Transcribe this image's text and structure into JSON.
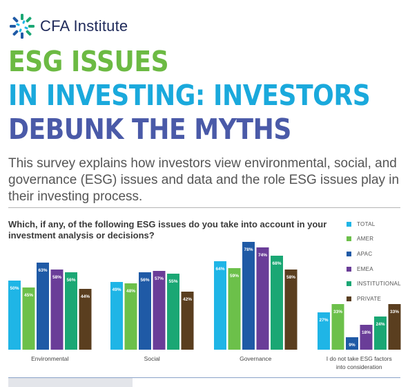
{
  "brand": {
    "name": "CFA Institute",
    "logo": "cfa-institute-logo"
  },
  "headline": {
    "line1": "ESG ISSUES",
    "line2": "IN INVESTING: INVESTORS",
    "line3": "DEBUNK THE MYTHS",
    "colors": [
      "#6cba43",
      "#1aa9dc",
      "#4a5aa8"
    ]
  },
  "intro": "This survey explains how investors view environmental, social, and governance (ESG) issues and data and the role ESG issues play in their investing process.",
  "chart_data": {
    "type": "bar",
    "title": "Which, if any, of the following ESG issues do you take into account in your investment analysis or decisions?",
    "categories": [
      "Environmental",
      "Social",
      "Governance",
      "I do not take ESG factors into consideration"
    ],
    "ylim": [
      0,
      80
    ],
    "grid": false,
    "legend_position": "top-right",
    "series": [
      {
        "name": "TOTAL",
        "color": "#1fb5e6",
        "values": [
          50,
          49,
          64,
          27
        ]
      },
      {
        "name": "AMER",
        "color": "#6cc04a",
        "values": [
          45,
          48,
          59,
          33
        ]
      },
      {
        "name": "APAC",
        "color": "#1f5aa6",
        "values": [
          63,
          56,
          78,
          9
        ]
      },
      {
        "name": "EMEA",
        "color": "#6a3d98",
        "values": [
          58,
          57,
          74,
          18
        ]
      },
      {
        "name": "INSTITUTIONAL",
        "color": "#1aa774",
        "values": [
          56,
          55,
          68,
          24
        ]
      },
      {
        "name": "PRIVATE",
        "color": "#5a3e1f",
        "values": [
          44,
          42,
          58,
          33
        ]
      }
    ],
    "value_suffix": "%"
  }
}
